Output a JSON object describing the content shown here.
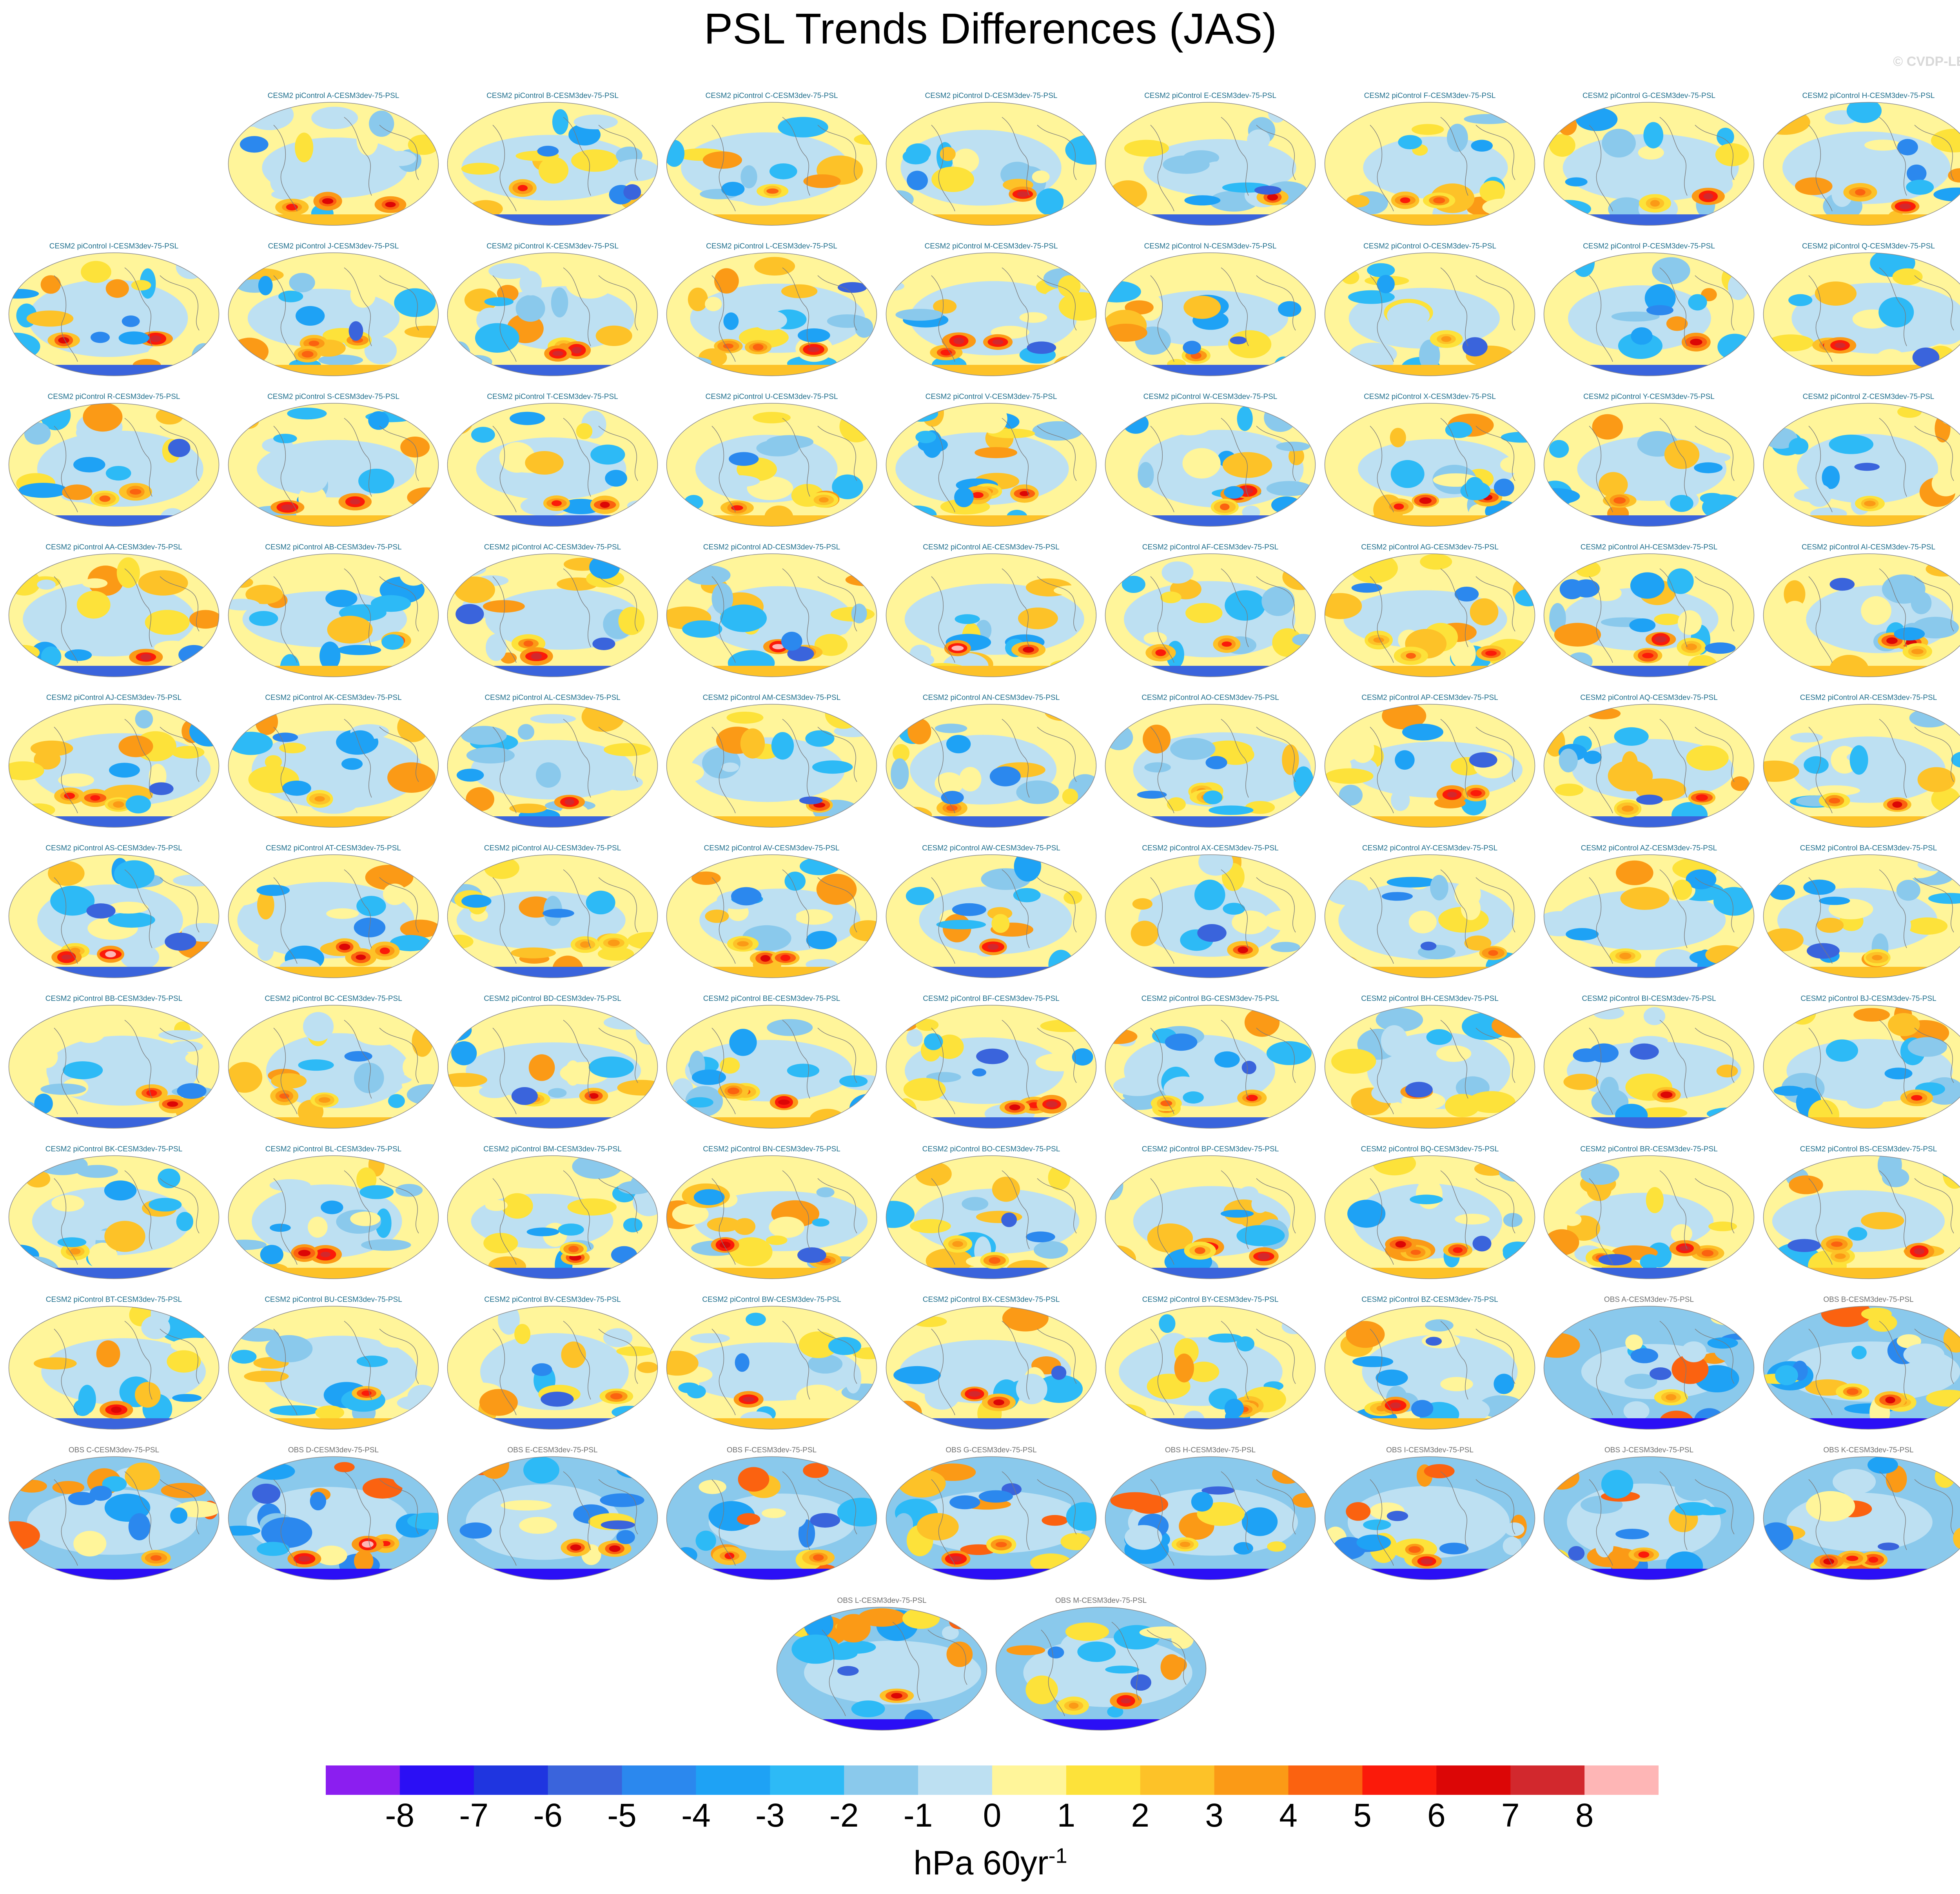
{
  "title": "PSL Trends Differences (JAS)",
  "credit": "© CVDP-LE",
  "chart_data": {
    "type": "heatmap",
    "title": "PSL Trends Differences (JAS)",
    "season": "JAS",
    "variable": "PSL",
    "projection": "global map",
    "panels": [
      {
        "label": "CESM2 piControl A-CESM3dev-75-PSL",
        "type": "model"
      },
      {
        "label": "CESM2 piControl B-CESM3dev-75-PSL",
        "type": "model"
      },
      {
        "label": "CESM2 piControl C-CESM3dev-75-PSL",
        "type": "model"
      },
      {
        "label": "CESM2 piControl D-CESM3dev-75-PSL",
        "type": "model"
      },
      {
        "label": "CESM2 piControl E-CESM3dev-75-PSL",
        "type": "model"
      },
      {
        "label": "CESM2 piControl F-CESM3dev-75-PSL",
        "type": "model"
      },
      {
        "label": "CESM2 piControl G-CESM3dev-75-PSL",
        "type": "model"
      },
      {
        "label": "CESM2 piControl H-CESM3dev-75-PSL",
        "type": "model"
      },
      {
        "label": "CESM2 piControl I-CESM3dev-75-PSL",
        "type": "model"
      },
      {
        "label": "CESM2 piControl J-CESM3dev-75-PSL",
        "type": "model"
      },
      {
        "label": "CESM2 piControl K-CESM3dev-75-PSL",
        "type": "model"
      },
      {
        "label": "CESM2 piControl L-CESM3dev-75-PSL",
        "type": "model"
      },
      {
        "label": "CESM2 piControl M-CESM3dev-75-PSL",
        "type": "model"
      },
      {
        "label": "CESM2 piControl N-CESM3dev-75-PSL",
        "type": "model"
      },
      {
        "label": "CESM2 piControl O-CESM3dev-75-PSL",
        "type": "model"
      },
      {
        "label": "CESM2 piControl P-CESM3dev-75-PSL",
        "type": "model"
      },
      {
        "label": "CESM2 piControl Q-CESM3dev-75-PSL",
        "type": "model"
      },
      {
        "label": "CESM2 piControl R-CESM3dev-75-PSL",
        "type": "model"
      },
      {
        "label": "CESM2 piControl S-CESM3dev-75-PSL",
        "type": "model"
      },
      {
        "label": "CESM2 piControl T-CESM3dev-75-PSL",
        "type": "model"
      },
      {
        "label": "CESM2 piControl U-CESM3dev-75-PSL",
        "type": "model"
      },
      {
        "label": "CESM2 piControl V-CESM3dev-75-PSL",
        "type": "model"
      },
      {
        "label": "CESM2 piControl W-CESM3dev-75-PSL",
        "type": "model"
      },
      {
        "label": "CESM2 piControl X-CESM3dev-75-PSL",
        "type": "model"
      },
      {
        "label": "CESM2 piControl Y-CESM3dev-75-PSL",
        "type": "model"
      },
      {
        "label": "CESM2 piControl Z-CESM3dev-75-PSL",
        "type": "model"
      },
      {
        "label": "CESM2 piControl AA-CESM3dev-75-PSL",
        "type": "model"
      },
      {
        "label": "CESM2 piControl AB-CESM3dev-75-PSL",
        "type": "model"
      },
      {
        "label": "CESM2 piControl AC-CESM3dev-75-PSL",
        "type": "model"
      },
      {
        "label": "CESM2 piControl AD-CESM3dev-75-PSL",
        "type": "model"
      },
      {
        "label": "CESM2 piControl AE-CESM3dev-75-PSL",
        "type": "model"
      },
      {
        "label": "CESM2 piControl AF-CESM3dev-75-PSL",
        "type": "model"
      },
      {
        "label": "CESM2 piControl AG-CESM3dev-75-PSL",
        "type": "model"
      },
      {
        "label": "CESM2 piControl AH-CESM3dev-75-PSL",
        "type": "model"
      },
      {
        "label": "CESM2 piControl AI-CESM3dev-75-PSL",
        "type": "model"
      },
      {
        "label": "CESM2 piControl AJ-CESM3dev-75-PSL",
        "type": "model"
      },
      {
        "label": "CESM2 piControl AK-CESM3dev-75-PSL",
        "type": "model"
      },
      {
        "label": "CESM2 piControl AL-CESM3dev-75-PSL",
        "type": "model"
      },
      {
        "label": "CESM2 piControl AM-CESM3dev-75-PSL",
        "type": "model"
      },
      {
        "label": "CESM2 piControl AN-CESM3dev-75-PSL",
        "type": "model"
      },
      {
        "label": "CESM2 piControl AO-CESM3dev-75-PSL",
        "type": "model"
      },
      {
        "label": "CESM2 piControl AP-CESM3dev-75-PSL",
        "type": "model"
      },
      {
        "label": "CESM2 piControl AQ-CESM3dev-75-PSL",
        "type": "model"
      },
      {
        "label": "CESM2 piControl AR-CESM3dev-75-PSL",
        "type": "model"
      },
      {
        "label": "CESM2 piControl AS-CESM3dev-75-PSL",
        "type": "model"
      },
      {
        "label": "CESM2 piControl AT-CESM3dev-75-PSL",
        "type": "model"
      },
      {
        "label": "CESM2 piControl AU-CESM3dev-75-PSL",
        "type": "model"
      },
      {
        "label": "CESM2 piControl AV-CESM3dev-75-PSL",
        "type": "model"
      },
      {
        "label": "CESM2 piControl AW-CESM3dev-75-PSL",
        "type": "model"
      },
      {
        "label": "CESM2 piControl AX-CESM3dev-75-PSL",
        "type": "model"
      },
      {
        "label": "CESM2 piControl AY-CESM3dev-75-PSL",
        "type": "model"
      },
      {
        "label": "CESM2 piControl AZ-CESM3dev-75-PSL",
        "type": "model"
      },
      {
        "label": "CESM2 piControl BA-CESM3dev-75-PSL",
        "type": "model"
      },
      {
        "label": "CESM2 piControl BB-CESM3dev-75-PSL",
        "type": "model"
      },
      {
        "label": "CESM2 piControl BC-CESM3dev-75-PSL",
        "type": "model"
      },
      {
        "label": "CESM2 piControl BD-CESM3dev-75-PSL",
        "type": "model"
      },
      {
        "label": "CESM2 piControl BE-CESM3dev-75-PSL",
        "type": "model"
      },
      {
        "label": "CESM2 piControl BF-CESM3dev-75-PSL",
        "type": "model"
      },
      {
        "label": "CESM2 piControl BG-CESM3dev-75-PSL",
        "type": "model"
      },
      {
        "label": "CESM2 piControl BH-CESM3dev-75-PSL",
        "type": "model"
      },
      {
        "label": "CESM2 piControl BI-CESM3dev-75-PSL",
        "type": "model"
      },
      {
        "label": "CESM2 piControl BJ-CESM3dev-75-PSL",
        "type": "model"
      },
      {
        "label": "CESM2 piControl BK-CESM3dev-75-PSL",
        "type": "model"
      },
      {
        "label": "CESM2 piControl BL-CESM3dev-75-PSL",
        "type": "model"
      },
      {
        "label": "CESM2 piControl BM-CESM3dev-75-PSL",
        "type": "model"
      },
      {
        "label": "CESM2 piControl BN-CESM3dev-75-PSL",
        "type": "model"
      },
      {
        "label": "CESM2 piControl BO-CESM3dev-75-PSL",
        "type": "model"
      },
      {
        "label": "CESM2 piControl BP-CESM3dev-75-PSL",
        "type": "model"
      },
      {
        "label": "CESM2 piControl BQ-CESM3dev-75-PSL",
        "type": "model"
      },
      {
        "label": "CESM2 piControl BR-CESM3dev-75-PSL",
        "type": "model"
      },
      {
        "label": "CESM2 piControl BS-CESM3dev-75-PSL",
        "type": "model"
      },
      {
        "label": "CESM2 piControl BT-CESM3dev-75-PSL",
        "type": "model"
      },
      {
        "label": "CESM2 piControl BU-CESM3dev-75-PSL",
        "type": "model"
      },
      {
        "label": "CESM2 piControl BV-CESM3dev-75-PSL",
        "type": "model"
      },
      {
        "label": "CESM2 piControl BW-CESM3dev-75-PSL",
        "type": "model"
      },
      {
        "label": "CESM2 piControl BX-CESM3dev-75-PSL",
        "type": "model"
      },
      {
        "label": "CESM2 piControl BY-CESM3dev-75-PSL",
        "type": "model"
      },
      {
        "label": "CESM2 piControl BZ-CESM3dev-75-PSL",
        "type": "model"
      },
      {
        "label": "OBS A-CESM3dev-75-PSL",
        "type": "obs"
      },
      {
        "label": "OBS B-CESM3dev-75-PSL",
        "type": "obs"
      },
      {
        "label": "OBS C-CESM3dev-75-PSL",
        "type": "obs"
      },
      {
        "label": "OBS D-CESM3dev-75-PSL",
        "type": "obs"
      },
      {
        "label": "OBS E-CESM3dev-75-PSL",
        "type": "obs"
      },
      {
        "label": "OBS F-CESM3dev-75-PSL",
        "type": "obs"
      },
      {
        "label": "OBS G-CESM3dev-75-PSL",
        "type": "obs"
      },
      {
        "label": "OBS H-CESM3dev-75-PSL",
        "type": "obs"
      },
      {
        "label": "OBS I-CESM3dev-75-PSL",
        "type": "obs"
      },
      {
        "label": "OBS J-CESM3dev-75-PSL",
        "type": "obs"
      },
      {
        "label": "OBS K-CESM3dev-75-PSL",
        "type": "obs"
      },
      {
        "label": "OBS L-CESM3dev-75-PSL",
        "type": "obs"
      },
      {
        "label": "OBS M-CESM3dev-75-PSL",
        "type": "obs"
      }
    ],
    "colorbar": {
      "levels": [
        -8,
        -7,
        -6,
        -5,
        -4,
        -3,
        -2,
        -1,
        0,
        1,
        2,
        3,
        4,
        5,
        6,
        7,
        8
      ],
      "colors": [
        "#8b1ef0",
        "#2b0ff5",
        "#1f35e0",
        "#3a64dc",
        "#2b88ee",
        "#1ea2f5",
        "#2dbaf6",
        "#8ac9ec",
        "#bde0f2",
        "#fff59a",
        "#fde23a",
        "#fdc228",
        "#fb9a16",
        "#fb6210",
        "#fb1a0a",
        "#dc0606",
        "#d2282d",
        "#feb6b6"
      ],
      "units": "hPa 60yr",
      "units_superscript": "-1"
    }
  }
}
